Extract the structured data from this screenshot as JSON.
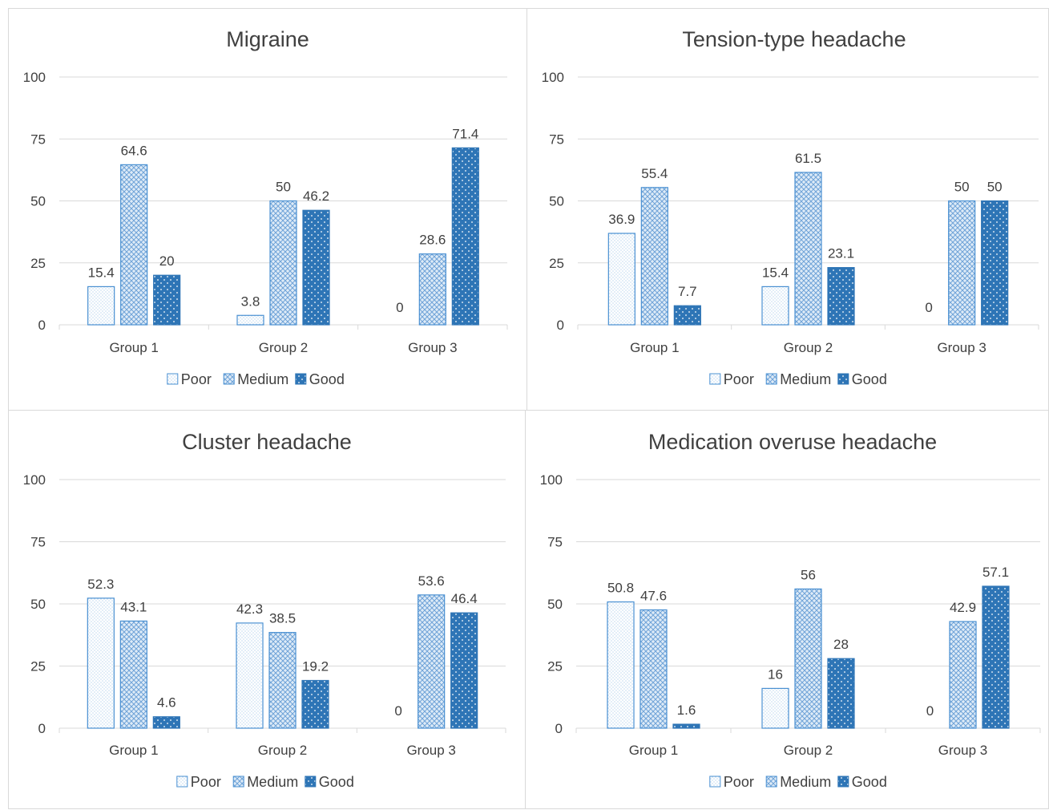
{
  "colors": {
    "poor": "#4a90d2",
    "medium": "#4a90d2",
    "good": "#2e75b6",
    "grid": "#d9d9d9",
    "text": "#404040"
  },
  "legend": {
    "poor": "Poor",
    "medium": "Medium",
    "good": "Good"
  },
  "chart_data": [
    {
      "type": "bar",
      "title": "Migraine",
      "categories": [
        "Group 1",
        "Group 2",
        "Group 3"
      ],
      "ylim": [
        0,
        100
      ],
      "yticks": [
        "0",
        "25",
        "50",
        "75",
        "100"
      ],
      "grid": true,
      "legend_position": "bottom",
      "series": [
        {
          "name": "Poor",
          "values": [
            15.4,
            3.8,
            0
          ]
        },
        {
          "name": "Medium",
          "values": [
            64.6,
            50,
            28.6
          ]
        },
        {
          "name": "Good",
          "values": [
            20,
            46.2,
            71.4
          ]
        }
      ]
    },
    {
      "type": "bar",
      "title": "Tension-type headache",
      "categories": [
        "Group 1",
        "Group 2",
        "Group 3"
      ],
      "ylim": [
        0,
        100
      ],
      "yticks": [
        "0",
        "25",
        "50",
        "75",
        "100"
      ],
      "grid": true,
      "legend_position": "bottom",
      "series": [
        {
          "name": "Poor",
          "values": [
            36.9,
            15.4,
            0
          ]
        },
        {
          "name": "Medium",
          "values": [
            55.4,
            61.5,
            50
          ]
        },
        {
          "name": "Good",
          "values": [
            7.7,
            23.1,
            50
          ]
        }
      ]
    },
    {
      "type": "bar",
      "title": "Cluster headache",
      "categories": [
        "Group 1",
        "Group 2",
        "Group 3"
      ],
      "ylim": [
        0,
        100
      ],
      "yticks": [
        "0",
        "25",
        "50",
        "75",
        "100"
      ],
      "grid": true,
      "legend_position": "bottom",
      "series": [
        {
          "name": "Poor",
          "values": [
            52.3,
            42.3,
            0
          ]
        },
        {
          "name": "Medium",
          "values": [
            43.1,
            38.5,
            53.6
          ]
        },
        {
          "name": "Good",
          "values": [
            4.6,
            19.2,
            46.4
          ]
        }
      ]
    },
    {
      "type": "bar",
      "title": "Medication overuse headache",
      "categories": [
        "Group 1",
        "Group 2",
        "Group 3"
      ],
      "ylim": [
        0,
        100
      ],
      "yticks": [
        "0",
        "25",
        "50",
        "75",
        "100"
      ],
      "grid": true,
      "legend_position": "bottom",
      "series": [
        {
          "name": "Poor",
          "values": [
            50.8,
            16,
            0
          ]
        },
        {
          "name": "Medium",
          "values": [
            47.6,
            56,
            42.9
          ]
        },
        {
          "name": "Good",
          "values": [
            1.6,
            28,
            57.1
          ]
        }
      ]
    }
  ]
}
